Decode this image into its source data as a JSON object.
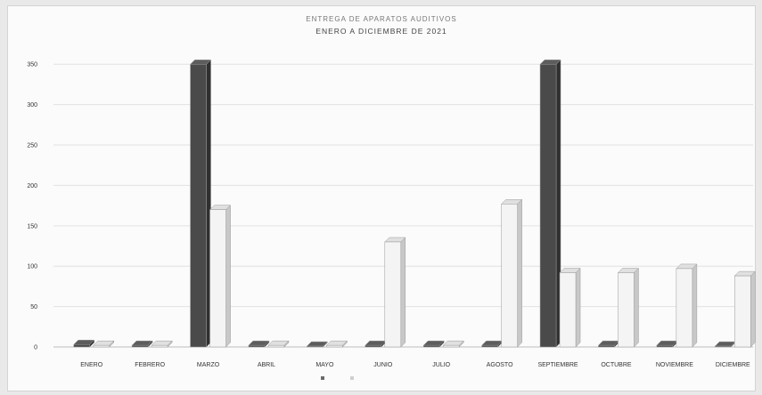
{
  "chart_data": {
    "type": "bar",
    "title": "ENTREGA DE APARATOS AUDITIVOS",
    "subtitle": "ENERO A DICIEMBRE DE 2021",
    "categories": [
      "ENERO",
      "FEBRERO",
      "MARZO",
      "ABRIL",
      "MAYO",
      "JUNIO",
      "JULIO",
      "AGOSTO",
      "SEPTIEMBRE",
      "OCTUBRE",
      "NOVIEMBRE",
      "DICIEMBRE"
    ],
    "series": [
      {
        "name": "",
        "color": "#4a4a4a",
        "values": [
          3,
          2,
          350,
          2,
          1,
          2,
          2,
          2,
          350,
          2,
          2,
          1
        ]
      },
      {
        "name": "",
        "color": "#f4f4f4",
        "values": [
          2,
          2,
          170,
          2,
          2,
          130,
          2,
          177,
          92,
          92,
          97,
          88
        ]
      }
    ],
    "yticks": [
      0,
      50,
      100,
      150,
      200,
      250,
      300,
      350
    ],
    "ylim": [
      0,
      380
    ],
    "grid": true,
    "legend": "bottom"
  }
}
